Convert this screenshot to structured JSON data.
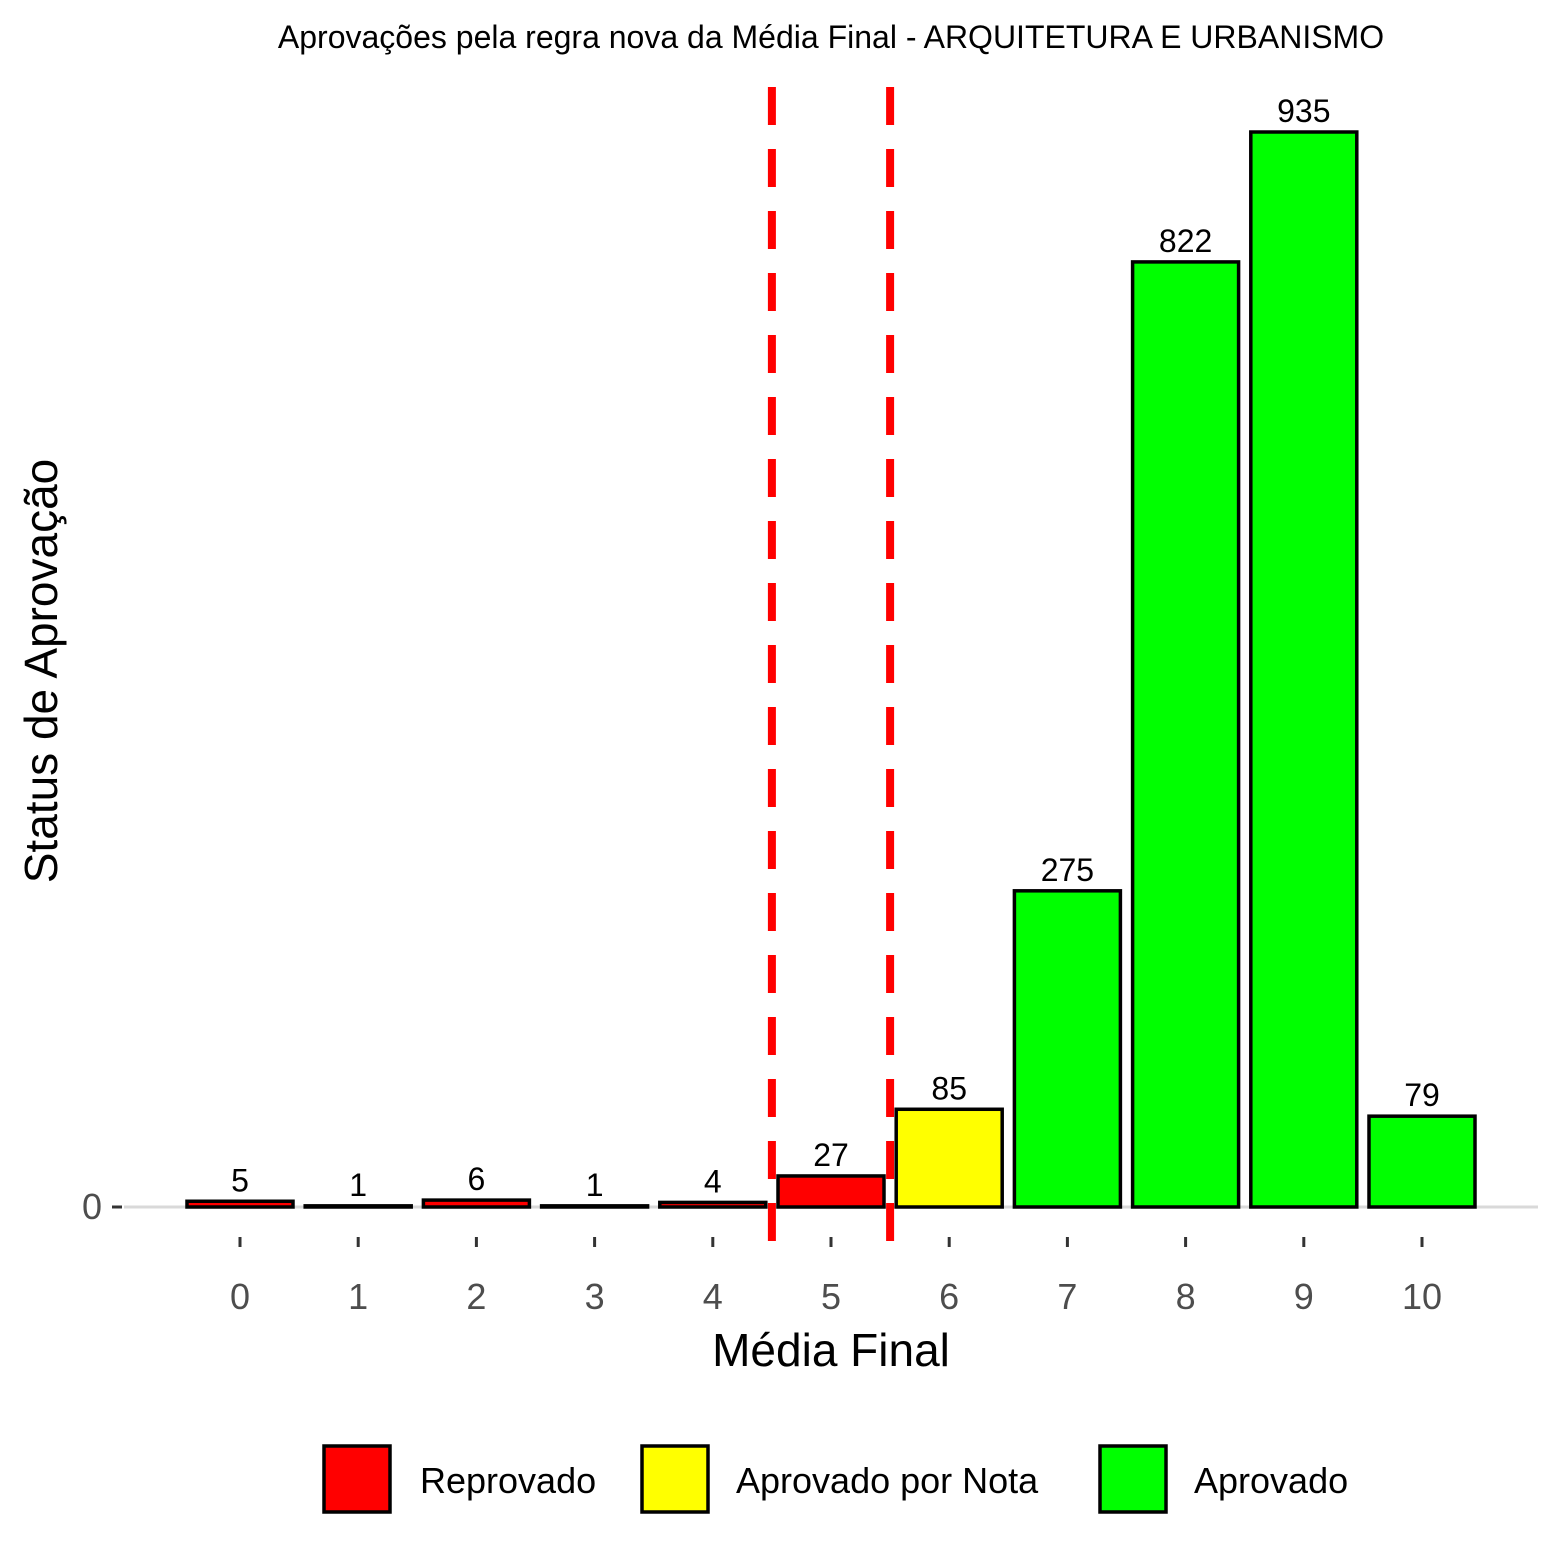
{
  "chart_data": {
    "type": "bar",
    "title": "Aprovações pela regra nova da Média Final - ARQUITETURA E URBANISMO",
    "xlabel": "Média Final",
    "ylabel": "Status de Aprovação",
    "categories": [
      "0",
      "1",
      "2",
      "3",
      "4",
      "5",
      "6",
      "7",
      "8",
      "9",
      "10"
    ],
    "values": [
      5,
      1,
      6,
      1,
      4,
      27,
      85,
      275,
      822,
      935,
      79
    ],
    "status": [
      "Reprovado",
      "Reprovado",
      "Reprovado",
      "Reprovado",
      "Reprovado",
      "Reprovado",
      "Aprovado por Nota",
      "Aprovado",
      "Aprovado",
      "Aprovado",
      "Aprovado"
    ],
    "y_ticks": [
      "0"
    ],
    "ylim": [
      0,
      935
    ],
    "reference_lines_x": [
      4.5,
      5.5
    ],
    "reference_line_color": "#ff0000",
    "legend": {
      "position": "bottom",
      "items": [
        {
          "label": "Reprovado",
          "color": "#ff0000"
        },
        {
          "label": "Aprovado por Nota",
          "color": "#ffff00"
        },
        {
          "label": "Aprovado",
          "color": "#00ff00"
        }
      ]
    },
    "grid": false
  }
}
